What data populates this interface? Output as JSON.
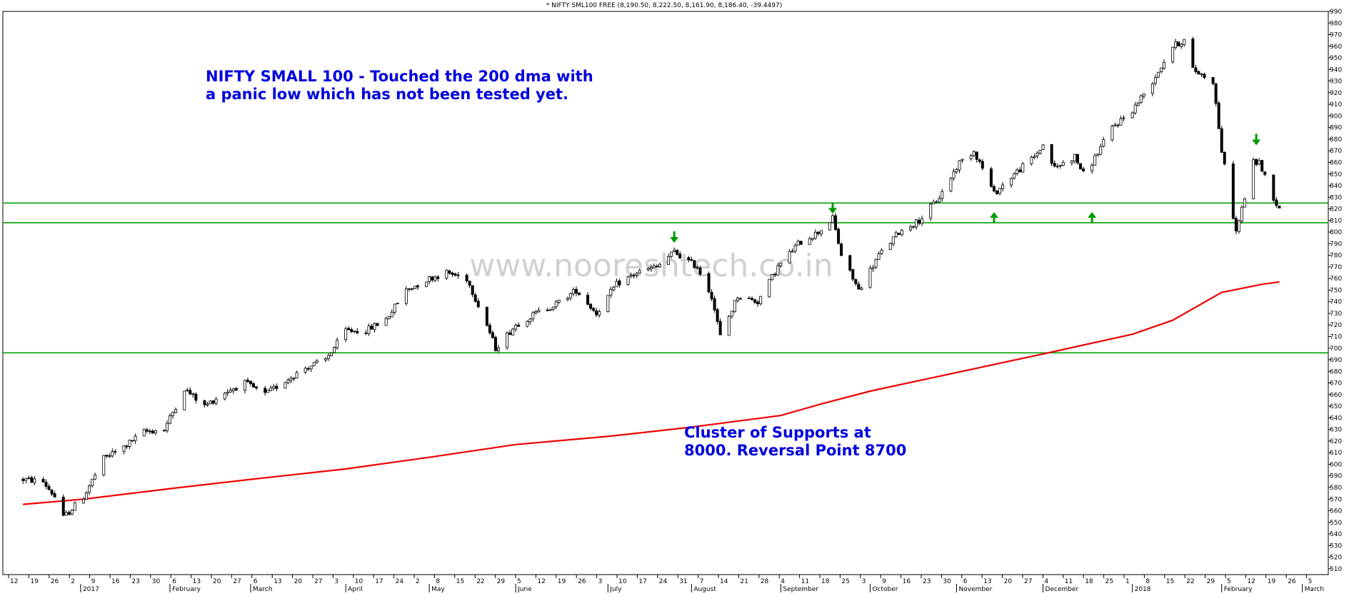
{
  "header": "* NIFTY SML100 FREE (8,190.50, 8,222.50, 8,161.90, 8,186.40, -39.4497)",
  "watermark": "www.nooreshtech.co.in",
  "chart_data": {
    "type": "candlestick",
    "title": "NIFTY SMALL 100 - Touched the 200 dma with a panic low which has not been tested yet.",
    "title_lines": [
      "NIFTY SMALL 100 - Touched the 200 dma with",
      "a panic low which has not been tested yet."
    ],
    "annotation_lines": [
      "Cluster of Supports at",
      "8000. Reversal Point 8700"
    ],
    "y_axis": {
      "min": 5050,
      "max": 9900,
      "tick_step": 100,
      "side": "right"
    },
    "y_tick_labels": [
      "510",
      "520",
      "530",
      "540",
      "550",
      "560",
      "570",
      "580",
      "590",
      "600",
      "610",
      "620",
      "630",
      "640",
      "650",
      "660",
      "670",
      "680",
      "690",
      "700",
      "710",
      "720",
      "730",
      "740",
      "750",
      "760",
      "770",
      "780",
      "790",
      "800",
      "810",
      "820",
      "830",
      "840",
      "850",
      "860",
      "870",
      "880",
      "890",
      "900",
      "910",
      "920",
      "930",
      "940",
      "950",
      "960",
      "970",
      "980",
      "990"
    ],
    "x_tick_labels": [
      "12",
      "19",
      "26",
      "2",
      "9",
      "16",
      "23",
      "30",
      "6",
      "13",
      "20",
      "27",
      "6",
      "13",
      "20",
      "27",
      "3",
      "10",
      "17",
      "24",
      "2",
      "8",
      "15",
      "22",
      "29",
      "5",
      "12",
      "19",
      "26",
      "3",
      "10",
      "17",
      "24",
      "31",
      "7",
      "14",
      "21",
      "28",
      "4",
      "11",
      "18",
      "25",
      "3",
      "9",
      "16",
      "23",
      "30",
      "6",
      "13",
      "20",
      "27",
      "4",
      "11",
      "18",
      "25",
      "1",
      "8",
      "15",
      "22",
      "29",
      "5",
      "12",
      "19",
      "26",
      "5"
    ],
    "month_labels": [
      "2017",
      "February",
      "March",
      "April",
      "May",
      "June",
      "July",
      "August",
      "September",
      "October",
      "November",
      "December",
      "2018",
      "February",
      "March"
    ],
    "horizontal_lines": [
      {
        "value": 8250,
        "color": "#00a000"
      },
      {
        "value": 8080,
        "color": "#00a000"
      },
      {
        "value": 6960,
        "color": "#00a000"
      }
    ],
    "arrows": [
      {
        "date": "2017-07-26",
        "direction": "down",
        "value": 7920
      },
      {
        "date": "2017-09-19",
        "direction": "down",
        "value": 8170
      },
      {
        "date": "2017-11-14",
        "direction": "up",
        "value": 8160
      },
      {
        "date": "2017-12-18",
        "direction": "up",
        "value": 8160
      },
      {
        "date": "2018-02-13",
        "direction": "down",
        "value": 8760
      }
    ],
    "dma_200": [
      [
        "2016-12-12",
        5655
      ],
      [
        "2017-01-02",
        5700
      ],
      [
        "2017-02-01",
        5790
      ],
      [
        "2017-03-01",
        5870
      ],
      [
        "2017-04-03",
        5960
      ],
      [
        "2017-05-02",
        6060
      ],
      [
        "2017-06-01",
        6170
      ],
      [
        "2017-07-03",
        6240
      ],
      [
        "2017-08-01",
        6320
      ],
      [
        "2017-09-01",
        6420
      ],
      [
        "2017-09-15",
        6520
      ],
      [
        "2017-10-02",
        6630
      ],
      [
        "2017-11-01",
        6790
      ],
      [
        "2017-12-01",
        6950
      ],
      [
        "2018-01-01",
        7120
      ],
      [
        "2018-01-15",
        7240
      ],
      [
        "2018-02-01",
        7480
      ],
      [
        "2018-02-15",
        7550
      ],
      [
        "2018-02-21",
        7570
      ]
    ],
    "price_anchors": [
      [
        "2016-12-12",
        5870
      ],
      [
        "2016-12-19",
        5850
      ],
      [
        "2016-12-23",
        5720
      ],
      [
        "2016-12-26",
        5540
      ],
      [
        "2017-01-02",
        5720
      ],
      [
        "2017-01-09",
        6050
      ],
      [
        "2017-01-16",
        6150
      ],
      [
        "2017-01-23",
        6280
      ],
      [
        "2017-01-30",
        6300
      ],
      [
        "2017-02-06",
        6650
      ],
      [
        "2017-02-13",
        6500
      ],
      [
        "2017-02-20",
        6620
      ],
      [
        "2017-02-27",
        6700
      ],
      [
        "2017-03-06",
        6600
      ],
      [
        "2017-03-13",
        6720
      ],
      [
        "2017-03-20",
        6830
      ],
      [
        "2017-03-27",
        6900
      ],
      [
        "2017-04-03",
        7150
      ],
      [
        "2017-04-10",
        7150
      ],
      [
        "2017-04-17",
        7250
      ],
      [
        "2017-04-24",
        7500
      ],
      [
        "2017-05-02",
        7600
      ],
      [
        "2017-05-08",
        7650
      ],
      [
        "2017-05-15",
        7600
      ],
      [
        "2017-05-22",
        7200
      ],
      [
        "2017-05-25",
        7000
      ],
      [
        "2017-06-01",
        7200
      ],
      [
        "2017-06-08",
        7300
      ],
      [
        "2017-06-15",
        7380
      ],
      [
        "2017-06-22",
        7500
      ],
      [
        "2017-06-29",
        7300
      ],
      [
        "2017-07-06",
        7550
      ],
      [
        "2017-07-13",
        7650
      ],
      [
        "2017-07-20",
        7700
      ],
      [
        "2017-07-26",
        7830
      ],
      [
        "2017-08-03",
        7700
      ],
      [
        "2017-08-08",
        7450
      ],
      [
        "2017-08-11",
        7100
      ],
      [
        "2017-08-17",
        7450
      ],
      [
        "2017-08-24",
        7400
      ],
      [
        "2017-08-31",
        7700
      ],
      [
        "2017-09-07",
        7900
      ],
      [
        "2017-09-14",
        8000
      ],
      [
        "2017-09-19",
        8120
      ],
      [
        "2017-09-22",
        7800
      ],
      [
        "2017-09-28",
        7500
      ],
      [
        "2017-10-05",
        7800
      ],
      [
        "2017-10-12",
        8000
      ],
      [
        "2017-10-19",
        8100
      ],
      [
        "2017-10-26",
        8300
      ],
      [
        "2017-11-02",
        8600
      ],
      [
        "2017-11-07",
        8700
      ],
      [
        "2017-11-10",
        8550
      ],
      [
        "2017-11-14",
        8330
      ],
      [
        "2017-11-21",
        8500
      ],
      [
        "2017-11-28",
        8650
      ],
      [
        "2017-12-01",
        8750
      ],
      [
        "2017-12-05",
        8550
      ],
      [
        "2017-12-12",
        8650
      ],
      [
        "2017-12-15",
        8500
      ],
      [
        "2017-12-18",
        8600
      ],
      [
        "2017-12-25",
        8900
      ],
      [
        "2018-01-01",
        9050
      ],
      [
        "2018-01-08",
        9300
      ],
      [
        "2018-01-15",
        9600
      ],
      [
        "2018-01-19",
        9650
      ],
      [
        "2018-01-22",
        9400
      ],
      [
        "2018-01-29",
        9300
      ],
      [
        "2018-02-01",
        8700
      ],
      [
        "2018-02-06",
        8000
      ],
      [
        "2018-02-09",
        8300
      ],
      [
        "2018-02-12",
        8600
      ],
      [
        "2018-02-14",
        8600
      ],
      [
        "2018-02-19",
        8300
      ],
      [
        "2018-02-21",
        8190
      ]
    ]
  }
}
